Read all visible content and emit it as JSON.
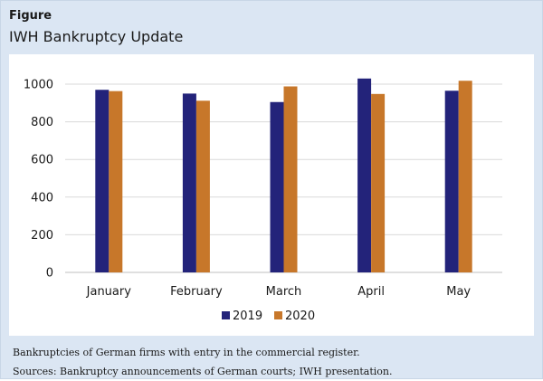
{
  "header": {
    "label": "Figure",
    "title": "IWH Bankruptcy Update"
  },
  "notes": {
    "line1": "Bankruptcies of German firms with entry in the commercial register.",
    "line2": "Sources: Bankruptcy announcements of German courts; IWH presentation."
  },
  "colors": {
    "series_2019": "#23237a",
    "series_2020": "#c7772a",
    "grid": "#d9d9d9",
    "axis": "#bfbfbf"
  },
  "chart_data": {
    "type": "bar",
    "categories": [
      "January",
      "February",
      "March",
      "April",
      "May"
    ],
    "series": [
      {
        "name": "2019",
        "values": [
          970,
          950,
          905,
          1030,
          965
        ]
      },
      {
        "name": "2020",
        "values": [
          963,
          912,
          988,
          948,
          1018
        ]
      }
    ],
    "ylim": [
      0,
      1000
    ],
    "yticks": [
      0,
      200,
      400,
      600,
      800,
      1000
    ],
    "title": "",
    "xlabel": "",
    "ylabel": "",
    "grid": true,
    "legend_position": "bottom"
  }
}
